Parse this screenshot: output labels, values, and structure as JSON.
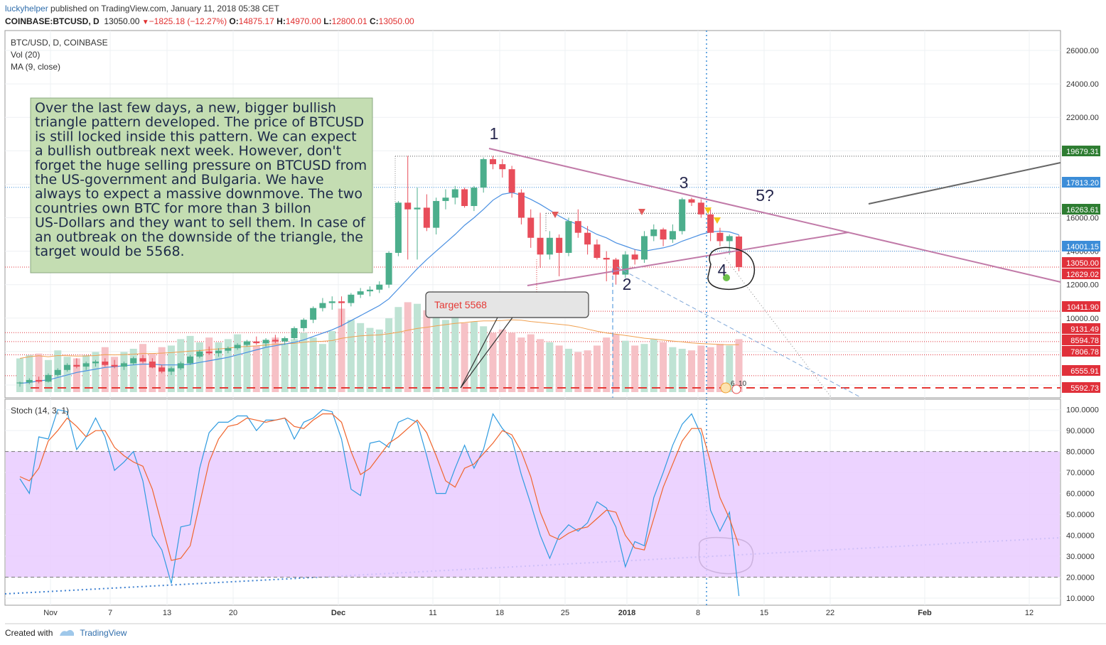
{
  "header": {
    "user": "luckyhelper",
    "published": "published on TradingView.com, January 11, 2018 05:38 CET",
    "symbol": "COINBASE:BTCUSD, D",
    "last": "13050.00",
    "change": "−1825.18 (−12.27%)",
    "o_label": "O:",
    "o": "14875.17",
    "h_label": "H:",
    "h": "14970.00",
    "l_label": "L:",
    "l": "12800.01",
    "c_label": "C:",
    "c": "13050.00"
  },
  "legend": {
    "title": "BTC/USD, D, COINBASE",
    "vol": "Vol (20)",
    "ma": "MA (9, close)"
  },
  "stoch_label": "Stoch (14, 3, 1)",
  "annotation": "Over the last few days, a new, bigger bullish triangle pattern developed. The price of BTCUSD is still locked inside this pattern. We can expect a bullish outbreak next week. However, don't forget the huge selling pressure on BTCUSD from the US-government and Bulgaria. We have always to expect a massive downmove. The two countries own BTC for more than 3 billon US-Dollars and they want to sell them. In case of an outbreak on the downside of the triangle, the target would be 5568.",
  "callout": "Target 5568",
  "waves": [
    "1",
    "2",
    "3",
    "4",
    "5?"
  ],
  "event_badge": {
    "a": "6",
    "b": "10"
  },
  "footer": {
    "created": "Created with",
    "brand": "TradingView"
  },
  "colors": {
    "up": "#4cae8c",
    "down": "#e84d5a",
    "ma": "#4a90e2",
    "stoch_k": "#2f9be0",
    "stoch_d": "#f0642c",
    "triangle": "#c17aa8",
    "note_bg": "#c4ddb2",
    "stoch_band": "#e9cbff"
  },
  "chart_data": [
    {
      "type": "candlestick",
      "title": "BTC/USD, D, COINBASE",
      "ylim": [
        5000,
        27000
      ],
      "x_tick_labels": [
        "Nov",
        "7",
        "13",
        "20",
        "Dec",
        "11",
        "18",
        "25",
        "2018",
        "8",
        "15",
        "22",
        "Feb",
        "12"
      ],
      "y_tick_labels": [
        "6000.00",
        "8000.00",
        "10000.00",
        "12000.00",
        "14000.00",
        "16000.00",
        "18000.00",
        "20000.00",
        "22000.00",
        "24000.00",
        "26000.00"
      ],
      "price_labels": [
        {
          "value": "19679.31",
          "color": "#2e7d32"
        },
        {
          "value": "17813.20",
          "color": "#3c8dd8"
        },
        {
          "value": "16263.61",
          "color": "#2e7d32"
        },
        {
          "value": "14001.15",
          "color": "#3c8dd8"
        },
        {
          "value": "13050.00",
          "color": "#e0303a"
        },
        {
          "value": "12629.02",
          "color": "#e0303a"
        },
        {
          "value": "10411.90",
          "color": "#e0303a"
        },
        {
          "value": "9131.49",
          "color": "#e0303a"
        },
        {
          "value": "8594.78",
          "color": "#e0303a"
        },
        {
          "value": "7806.78",
          "color": "#e0303a"
        },
        {
          "value": "6555.91",
          "color": "#e0303a"
        },
        {
          "value": "5592.73",
          "color": "#e0303a"
        }
      ],
      "candles": [
        [
          6100,
          6200,
          5900,
          6150
        ],
        [
          6150,
          6400,
          6050,
          6300
        ],
        [
          6300,
          6500,
          6100,
          6200
        ],
        [
          6200,
          6700,
          6150,
          6600
        ],
        [
          6600,
          7000,
          6500,
          6900
        ],
        [
          6900,
          7300,
          6800,
          7200
        ],
        [
          7200,
          7600,
          7000,
          7100
        ],
        [
          7100,
          7400,
          6900,
          7300
        ],
        [
          7300,
          7500,
          7100,
          7400
        ],
        [
          7400,
          7600,
          7100,
          7200
        ],
        [
          7200,
          7500,
          7000,
          7100
        ],
        [
          7100,
          7400,
          6900,
          7300
        ],
        [
          7300,
          7700,
          7200,
          7600
        ],
        [
          7600,
          7800,
          7300,
          7400
        ],
        [
          7400,
          7600,
          7000,
          7050
        ],
        [
          7050,
          7200,
          6700,
          6800
        ],
        [
          6800,
          7100,
          6600,
          7000
        ],
        [
          7000,
          7400,
          6900,
          7300
        ],
        [
          7300,
          7800,
          7200,
          7700
        ],
        [
          7700,
          8100,
          7600,
          8000
        ],
        [
          8000,
          8300,
          7800,
          7900
        ],
        [
          7900,
          8200,
          7700,
          8050
        ],
        [
          8050,
          8300,
          7900,
          8200
        ],
        [
          8200,
          8500,
          8100,
          8400
        ],
        [
          8400,
          8700,
          8300,
          8600
        ],
        [
          8600,
          8900,
          8400,
          8500
        ],
        [
          8500,
          8800,
          8300,
          8700
        ],
        [
          8700,
          9000,
          8500,
          8600
        ],
        [
          8600,
          8900,
          8400,
          8800
        ],
        [
          8800,
          9500,
          8700,
          9400
        ],
        [
          9400,
          10000,
          9200,
          9900
        ],
        [
          9900,
          10700,
          9700,
          10600
        ],
        [
          10600,
          11200,
          10400,
          10900
        ],
        [
          10900,
          11300,
          10500,
          11000
        ],
        [
          11000,
          11300,
          9500,
          10900
        ],
        [
          10900,
          11500,
          10700,
          11400
        ],
        [
          11400,
          11800,
          11200,
          11600
        ],
        [
          11600,
          11900,
          11300,
          11700
        ],
        [
          11700,
          12200,
          11500,
          12000
        ],
        [
          12000,
          14000,
          11800,
          13900
        ],
        [
          13900,
          17000,
          13700,
          16900
        ],
        [
          16900,
          19700,
          13500,
          16500
        ],
        [
          16500,
          17800,
          13500,
          16600
        ],
        [
          16600,
          17400,
          15200,
          15400
        ],
        [
          15400,
          17200,
          15000,
          17000
        ],
        [
          17000,
          17700,
          16500,
          17200
        ],
        [
          17200,
          17900,
          16800,
          17700
        ],
        [
          17700,
          17800,
          16600,
          16700
        ],
        [
          16700,
          17900,
          16400,
          17800
        ],
        [
          17800,
          19600,
          17500,
          19500
        ],
        [
          19500,
          19700,
          18900,
          19200
        ],
        [
          19200,
          19500,
          18400,
          18900
        ],
        [
          18900,
          19100,
          17200,
          17500
        ],
        [
          17500,
          17700,
          15600,
          16000
        ],
        [
          16000,
          16500,
          14200,
          14800
        ],
        [
          14800,
          16300,
          13000,
          13800
        ],
        [
          13800,
          15200,
          13500,
          14800
        ],
        [
          14800,
          15000,
          12500,
          13900
        ],
        [
          13900,
          16000,
          13700,
          15800
        ],
        [
          15800,
          16500,
          14800,
          15100
        ],
        [
          15100,
          15500,
          13800,
          14400
        ],
        [
          14400,
          14700,
          13500,
          13600
        ],
        [
          13600,
          14000,
          12200,
          13500
        ],
        [
          13500,
          13600,
          12000,
          12600
        ],
        [
          12600,
          14000,
          12400,
          13800
        ],
        [
          13800,
          14100,
          13200,
          13500
        ],
        [
          13500,
          15200,
          13300,
          14900
        ],
        [
          14900,
          15600,
          14600,
          15300
        ],
        [
          15300,
          15400,
          14300,
          14700
        ],
        [
          14700,
          15600,
          14500,
          15200
        ],
        [
          15200,
          17200,
          15000,
          17100
        ],
        [
          17100,
          17200,
          16700,
          16900
        ],
        [
          16900,
          17100,
          16000,
          16200
        ],
        [
          16200,
          16500,
          14600,
          15100
        ],
        [
          15100,
          15400,
          14300,
          14600
        ],
        [
          14600,
          15000,
          13800,
          14900
        ],
        [
          14875.17,
          14970,
          12800.01,
          13050
        ]
      ],
      "ma9": [
        6100,
        6150,
        6250,
        6300,
        6450,
        6600,
        6750,
        6850,
        6950,
        7050,
        7100,
        7150,
        7200,
        7250,
        7250,
        7200,
        7200,
        7200,
        7250,
        7350,
        7450,
        7550,
        7650,
        7800,
        7950,
        8100,
        8250,
        8350,
        8450,
        8550,
        8700,
        8900,
        9100,
        9300,
        9550,
        9850,
        10150,
        10450,
        10750,
        11150,
        11750,
        12350,
        12950,
        13500,
        14000,
        14500,
        15000,
        15550,
        16000,
        16500,
        17050,
        17400,
        17500,
        17350,
        17100,
        16800,
        16450,
        16100,
        15800,
        15600,
        15300,
        15000,
        14800,
        14500,
        14300,
        14100,
        14000,
        14100,
        14200,
        14350,
        14600,
        14800,
        15000,
        15150,
        15200,
        15150,
        14975
      ],
      "volume": [
        2100,
        2300,
        2400,
        2000,
        2600,
        2200,
        2100,
        2300,
        2500,
        2800,
        2200,
        2500,
        2700,
        3000,
        2400,
        2800,
        2900,
        3300,
        3500,
        3100,
        3400,
        3100,
        3300,
        3600,
        3200,
        2900,
        3100,
        3400,
        3000,
        3300,
        3700,
        3400,
        3000,
        3800,
        5200,
        4500,
        4300,
        4000,
        3900,
        4600,
        5300,
        5600,
        5500,
        5100,
        4900,
        4500,
        4700,
        4300,
        4400,
        4100,
        3700,
        3900,
        3700,
        3400,
        3600,
        3300,
        3100,
        2900,
        2700,
        2500,
        2600,
        2900,
        3400,
        3600,
        3200,
        2900,
        3000,
        3300,
        3100,
        2800,
        2700,
        2600,
        2900,
        2800,
        3000,
        2900,
        3300
      ]
    },
    {
      "type": "line",
      "title": "Stoch (14, 3, 1)",
      "ylim": [
        10,
        100
      ],
      "y_tick_labels": [
        "10.0000",
        "20.0000",
        "30.0000",
        "40.0000",
        "50.0000",
        "60.0000",
        "70.0000",
        "80.0000",
        "90.0000",
        "100.0000"
      ],
      "series": [
        {
          "values": [
            67,
            60,
            87,
            86,
            100,
            99,
            81,
            87,
            96,
            87,
            71,
            75,
            80,
            66,
            40,
            33,
            17,
            44,
            45,
            72,
            89,
            94,
            94,
            97,
            97,
            90,
            95,
            95,
            96,
            86,
            94,
            96,
            100,
            99,
            86,
            62,
            59,
            84,
            85,
            82,
            94,
            96,
            94,
            78,
            60,
            60,
            72,
            83,
            72,
            81,
            98,
            91,
            86,
            69,
            55,
            40,
            29,
            40,
            45,
            42,
            46,
            56,
            53,
            44,
            25,
            37,
            35,
            58,
            70,
            83,
            93,
            98,
            88,
            52,
            42,
            51,
            11
          ]
        },
        {
          "values": [
            68,
            66,
            72,
            85,
            90,
            96,
            92,
            87,
            90,
            90,
            82,
            78,
            75,
            73,
            62,
            45,
            28,
            29,
            35,
            55,
            75,
            86,
            92,
            93,
            96,
            95,
            94,
            95,
            96,
            92,
            91,
            95,
            98,
            98,
            94,
            80,
            69,
            72,
            78,
            84,
            87,
            91,
            95,
            89,
            78,
            66,
            63,
            72,
            74,
            79,
            84,
            90,
            88,
            80,
            68,
            51,
            40,
            38,
            41,
            43,
            44,
            48,
            52,
            51,
            40,
            34,
            33,
            48,
            63,
            74,
            85,
            91,
            91,
            75,
            58,
            48,
            35
          ]
        }
      ]
    }
  ]
}
